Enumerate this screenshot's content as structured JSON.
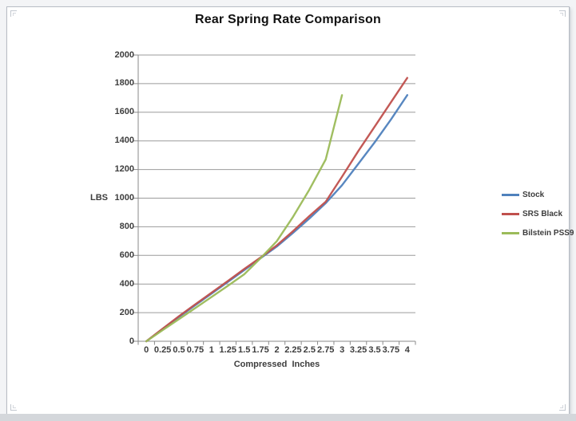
{
  "chart_data": {
    "type": "line",
    "title": "Rear Spring Rate Comparison",
    "xlabel": "Compressed  Inches",
    "ylabel": "LBS",
    "categories": [
      "0",
      "0.25",
      "0.5",
      "0.75",
      "1",
      "1.25",
      "1.5",
      "1.75",
      "2",
      "2.25",
      "2.5",
      "2.75",
      "3",
      "3.25",
      "3.5",
      "3.75",
      "4"
    ],
    "ylim": [
      0,
      2000
    ],
    "ytick_step": 200,
    "ytick_labels": [
      "0",
      "200",
      "400",
      "600",
      "800",
      "1000",
      "1200",
      "1400",
      "1600",
      "1800",
      "2000"
    ],
    "grid": true,
    "legend_position": "right",
    "series": [
      {
        "name": "Stock",
        "color": "#4F81BD",
        "values": [
          0,
          85,
          170,
          252,
          333,
          415,
          497,
          580,
          662,
          758,
          858,
          965,
          1090,
          1240,
          1390,
          1550,
          1720
        ]
      },
      {
        "name": "SRS Black",
        "color": "#C0504D",
        "values": [
          0,
          88,
          175,
          258,
          340,
          422,
          505,
          585,
          670,
          770,
          875,
          975,
          1150,
          1330,
          1500,
          1670,
          1840
        ]
      },
      {
        "name": "Bilstein PSS9",
        "color": "#9BBB59",
        "values": [
          0,
          78,
          155,
          232,
          310,
          388,
          468,
          580,
          700,
          870,
          1060,
          1270,
          1720
        ]
      }
    ],
    "colors": {
      "gridline": "#9b9b9b",
      "axis": "#8a8a8a",
      "tick_text": "#3d3d3d",
      "title_text": "#111111"
    }
  }
}
